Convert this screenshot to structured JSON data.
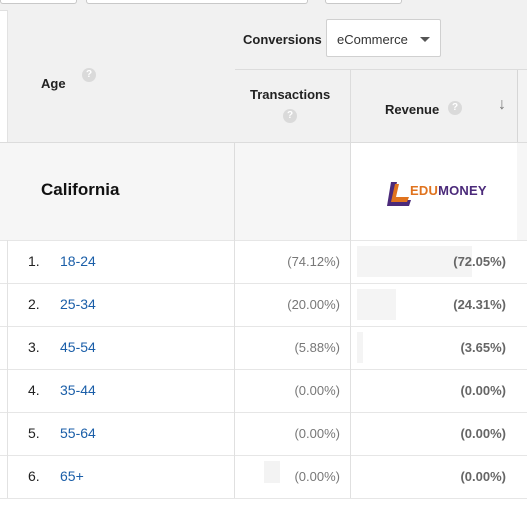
{
  "header": {
    "age_label": "Age",
    "help_glyph": "?",
    "conversions_label": "Conversions",
    "conversions_dropdown": {
      "selected": "eCommerce"
    },
    "transactions_label": "Transactions",
    "revenue_label": "Revenue",
    "sort_direction_icon": "arrow-down-icon"
  },
  "segment": {
    "title": "California",
    "logo_text_part1": "EDU",
    "logo_text_part2": "MONEY"
  },
  "rows": [
    {
      "rank": "1.",
      "age": "18-24",
      "transactions_pct": "(74.12%)",
      "revenue_pct": "(72.05%)",
      "revenue_share": 0.7205
    },
    {
      "rank": "2.",
      "age": "25-34",
      "transactions_pct": "(20.00%)",
      "revenue_pct": "(24.31%)",
      "revenue_share": 0.2431
    },
    {
      "rank": "3.",
      "age": "45-54",
      "transactions_pct": "(5.88%)",
      "revenue_pct": "(3.65%)",
      "revenue_share": 0.0365
    },
    {
      "rank": "4.",
      "age": "35-44",
      "transactions_pct": "(0.00%)",
      "revenue_pct": "(0.00%)",
      "revenue_share": 0
    },
    {
      "rank": "5.",
      "age": "55-64",
      "transactions_pct": "(0.00%)",
      "revenue_pct": "(0.00%)",
      "revenue_share": 0
    },
    {
      "rank": "6.",
      "age": "65+",
      "transactions_pct": "(0.00%)",
      "revenue_pct": "(0.00%)",
      "revenue_share": 0
    }
  ],
  "colors": {
    "link": "#1a5ea8",
    "logo_orange": "#e0731e",
    "logo_purple": "#4b2a7a",
    "header_bg": "#f1f1f1"
  }
}
